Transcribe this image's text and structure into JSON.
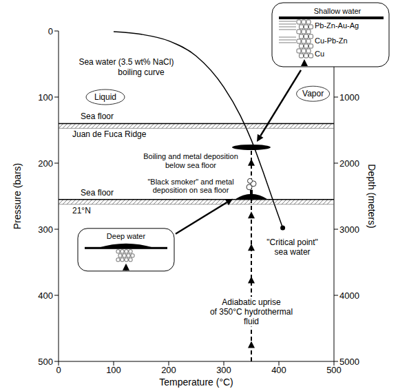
{
  "chart_data": {
    "type": "line",
    "x_label": "Temperature (°C)",
    "y_label": "Pressure (bars)",
    "y2_label": "Depth (meters)",
    "x": [
      100,
      150,
      200,
      250,
      300,
      330,
      350,
      370,
      390,
      407
    ],
    "values": [
      1,
      5,
      15,
      38,
      85,
      128,
      165,
      210,
      258,
      298
    ],
    "color": "#000000",
    "xlim": [
      0,
      500
    ],
    "xticks": [
      0,
      100,
      200,
      300,
      400,
      500
    ],
    "ylim": [
      500,
      0
    ],
    "yticks": [
      0,
      100,
      200,
      300,
      400,
      500
    ],
    "y2lim": [
      5000,
      0
    ],
    "y2ticks": [
      1000,
      2000,
      3000,
      4000,
      5000
    ],
    "annotations": [
      {
        "text": "Sea water (3.5 wt% NaCl)",
        "x": 123,
        "y": 47
      },
      {
        "text": "boiling curve",
        "x": 150,
        "y": 62
      }
    ],
    "regions": [
      {
        "text": "Liquid",
        "x": 85,
        "y": 100
      },
      {
        "text": "Vapor",
        "x": 462,
        "y": 95
      }
    ],
    "sea_floors": [
      {
        "label": "Sea floor",
        "name": "Juan de Fuca Ridge",
        "pressure": 140
      },
      {
        "label": "Sea floor",
        "name": "21°N",
        "pressure": 255
      }
    ],
    "boiling_zone": {
      "temperature": 350,
      "pressure": 176,
      "text": [
        "Boiling and metal deposition",
        "below sea floor"
      ]
    },
    "black_smoker": {
      "temperature": 350,
      "pressure": 255,
      "text": [
        "\"Black smoker\" and metal",
        "deposition on sea floor"
      ]
    },
    "uprise": {
      "temperature": 350,
      "text": [
        "Adiabatic uprise",
        "of 350°C hydrothermal",
        "fluid"
      ]
    },
    "critical_point": {
      "temperature": 407,
      "pressure": 298,
      "text": [
        "\"Critical point\"",
        "sea water"
      ]
    },
    "insets": {
      "deep": {
        "title": "Deep water"
      },
      "shallow": {
        "title": "Shallow water",
        "zones": [
          "Pb-Zn-Au-Ag",
          "Cu-Pb-Zn",
          "Cu"
        ]
      }
    }
  }
}
